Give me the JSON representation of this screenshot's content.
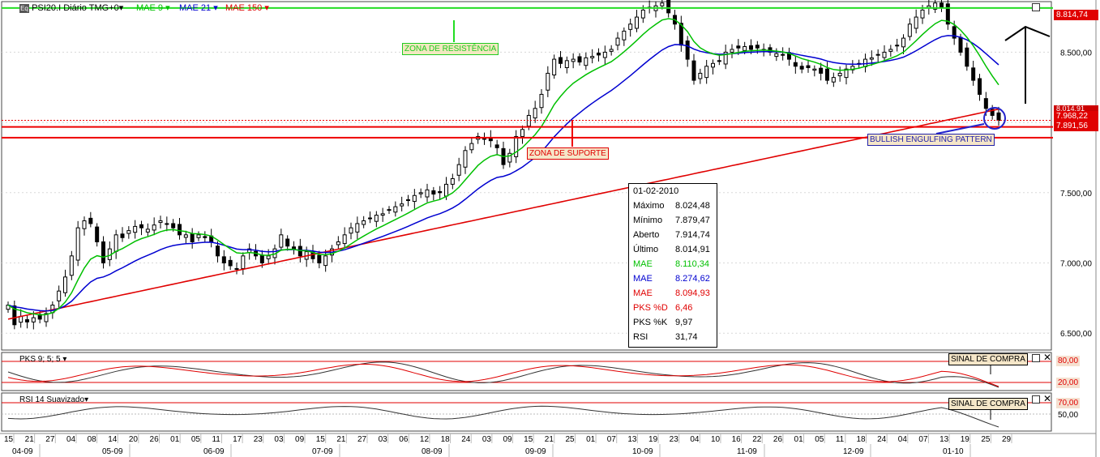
{
  "header": {
    "symbol_label": "PSI20.I Diário TMG+0",
    "ma1": "MAE 9",
    "ma2": "MAE 21",
    "ma3": "MAE 150",
    "colors": {
      "ma1": "#00c000",
      "ma2": "#0000d0",
      "ma3": "#e00000",
      "resist": "#22dd22",
      "support": "#ee0000"
    }
  },
  "annotations": {
    "resistance_zone": "ZONA DE RESISTÊNCIA",
    "support_zone": "ZONA DE SUPORTE",
    "pattern": "BULLISH ENGULFING PATTERN",
    "buy_signal_1": "SINAL DE COMPRA",
    "buy_signal_2": "SINAL DE COMPRA"
  },
  "price_tags": {
    "resistance": "8.814,74",
    "t1": "8.014,91",
    "t2": "7.968,22",
    "support": "7.891,56"
  },
  "info": {
    "date": "01-02-2010",
    "rows": [
      {
        "label": "Máximo",
        "value": "8.024,48"
      },
      {
        "label": "Mínimo",
        "value": "7.879,47"
      },
      {
        "label": "Aberto",
        "value": "7.914,74"
      },
      {
        "label": "Último",
        "value": "8.014,91"
      },
      {
        "label": "MAE",
        "value": "8.110,34"
      },
      {
        "label": "MAE",
        "value": "8.274,62"
      },
      {
        "label": "MAE",
        "value": "8.094,93"
      },
      {
        "label": "PKS %D",
        "value": "6,46"
      },
      {
        "label": "PKS %K",
        "value": "9,97"
      },
      {
        "label": "RSI",
        "value": "31,74"
      }
    ]
  },
  "panels": {
    "stoch_title": "PKS 9; 5; 5",
    "rsi_title": "RSI 14 Suavizado",
    "stoch_levels": [
      "80,00",
      "20,00"
    ],
    "rsi_levels": [
      "70,00",
      "50,00"
    ]
  },
  "chart_data": {
    "type": "candlestick",
    "title": "PSI20.I Diário TMG+0",
    "y_ticks": [
      "8.500,00",
      "8.000,00",
      "7.500,00",
      "7.000,00",
      "6.500,00"
    ],
    "y_tick_values": [
      8500,
      8000,
      7500,
      7000,
      6500
    ],
    "x_day_labels": [
      "15",
      "21",
      "27",
      "04",
      "08",
      "14",
      "20",
      "26",
      "01",
      "05",
      "11",
      "17",
      "23",
      "03",
      "09",
      "15",
      "21",
      "27",
      "03",
      "06",
      "12",
      "18",
      "24",
      "03",
      "09",
      "15",
      "21",
      "25",
      "01",
      "07",
      "13",
      "19",
      "23",
      "04",
      "10",
      "16",
      "22",
      "26",
      "01",
      "05",
      "11",
      "18",
      "24",
      "04",
      "07",
      "13",
      "19",
      "25",
      "29"
    ],
    "x_month_labels": [
      "04-09",
      "05-09",
      "06-09",
      "07-09",
      "08-09",
      "09-09",
      "10-09",
      "11-09",
      "12-09",
      "01-10"
    ],
    "resistance_level": 8814.74,
    "support_levels": [
      8014.91,
      7968.22,
      7891.56
    ],
    "ma_labels": [
      "MAE 9",
      "MAE 21",
      "MAE 150"
    ],
    "closes": [
      6700,
      6560,
      6620,
      6580,
      6610,
      6600,
      6640,
      6700,
      6800,
      6900,
      7050,
      7250,
      7300,
      7280,
      7150,
      7000,
      7100,
      7200,
      7180,
      7230,
      7260,
      7250,
      7240,
      7270,
      7300,
      7280,
      7250,
      7200,
      7200,
      7150,
      7200,
      7180,
      7150,
      7050,
      7000,
      6980,
      6960,
      7050,
      7100,
      7050,
      7000,
      7050,
      7100,
      7200,
      7120,
      7100,
      7050,
      7080,
      7030,
      7000,
      7050,
      7100,
      7150,
      7200,
      7250,
      7280,
      7300,
      7320,
      7340,
      7350,
      7380,
      7400,
      7420,
      7450,
      7480,
      7500,
      7520,
      7490,
      7500,
      7560,
      7600,
      7700,
      7800,
      7850,
      7900,
      7880,
      7870,
      7820,
      7700,
      7780,
      7900,
      7950,
      8050,
      8100,
      8200,
      8350,
      8450,
      8420,
      8440,
      8450,
      8430,
      8460,
      8470,
      8480,
      8500,
      8520,
      8600,
      8650,
      8700,
      8750,
      8800,
      8820,
      8830,
      8850,
      8780,
      8700,
      8550,
      8450,
      8300,
      8350,
      8400,
      8420,
      8440,
      8500,
      8520,
      8530,
      8540,
      8520,
      8530,
      8520,
      8500,
      8490,
      8480,
      8450,
      8400,
      8380,
      8390,
      8380,
      8350,
      8300,
      8320,
      8350,
      8380,
      8400,
      8420,
      8450,
      8460,
      8480,
      8500,
      8520,
      8550,
      8600,
      8700,
      8750,
      8800,
      8830,
      8850,
      8820,
      8700,
      8600,
      8500,
      8400,
      8300,
      8200,
      8100,
      8050,
      8014.91
    ],
    "ma1_last": 8110.34,
    "ma2_last": 8274.62,
    "ma3_last": 8094.93,
    "stoch_d_last": 6.46,
    "stoch_k_last": 9.97,
    "rsi_last": 31.74
  }
}
